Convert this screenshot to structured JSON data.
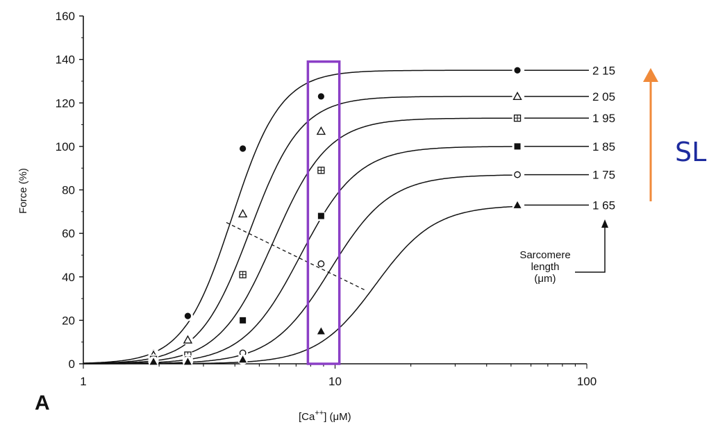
{
  "chart_data": {
    "type": "line",
    "panel_label": "A",
    "title": "",
    "xlabel_main": "[Ca",
    "xlabel_sup": "++",
    "xlabel_tail": "]  (μM)",
    "ylabel": "Force (%)",
    "x_scale": "log",
    "xlim": [
      1,
      100
    ],
    "ylim": [
      0,
      160
    ],
    "x_ticks": [
      1,
      10,
      100
    ],
    "x_tick_labels": [
      "1",
      "10",
      "100"
    ],
    "y_ticks": [
      0,
      20,
      40,
      60,
      80,
      100,
      120,
      140,
      160
    ],
    "y_tick_labels": [
      "0",
      "20",
      "40",
      "60",
      "80",
      "100",
      "120",
      "140",
      "160"
    ],
    "grid": false,
    "legend_title": "Sarcomere length (μm)",
    "legend_title_lines": [
      "Sarcomere",
      "length",
      "(μm)"
    ],
    "series": [
      {
        "name": "2 15",
        "marker": "filled-circle",
        "fmax": 135,
        "ec50": 3.9,
        "hill": 4.5,
        "points": [
          {
            "x": 1.9,
            "y": 5
          },
          {
            "x": 2.6,
            "y": 22
          },
          {
            "x": 4.3,
            "y": 99
          },
          {
            "x": 8.8,
            "y": 123
          },
          {
            "x": 53,
            "y": 135
          }
        ]
      },
      {
        "name": "2 05",
        "marker": "open-triangle",
        "fmax": 123,
        "ec50": 4.6,
        "hill": 4.3,
        "points": [
          {
            "x": 1.9,
            "y": 4
          },
          {
            "x": 2.6,
            "y": 11
          },
          {
            "x": 4.3,
            "y": 69
          },
          {
            "x": 8.8,
            "y": 107
          },
          {
            "x": 53,
            "y": 123
          }
        ]
      },
      {
        "name": "1 95",
        "marker": "boxed-square",
        "fmax": 113,
        "ec50": 5.7,
        "hill": 4.0,
        "points": [
          {
            "x": 1.9,
            "y": 2
          },
          {
            "x": 2.6,
            "y": 4
          },
          {
            "x": 4.3,
            "y": 41
          },
          {
            "x": 8.8,
            "y": 89
          },
          {
            "x": 53,
            "y": 113
          }
        ]
      },
      {
        "name": "1 85",
        "marker": "filled-square",
        "fmax": 100,
        "ec50": 7.3,
        "hill": 3.8,
        "points": [
          {
            "x": 1.9,
            "y": 1
          },
          {
            "x": 2.6,
            "y": 2
          },
          {
            "x": 4.3,
            "y": 20
          },
          {
            "x": 8.8,
            "y": 68
          },
          {
            "x": 53,
            "y": 100
          }
        ]
      },
      {
        "name": "1 75",
        "marker": "open-circle",
        "fmax": 87,
        "ec50": 9.6,
        "hill": 3.7,
        "points": [
          {
            "x": 1.9,
            "y": 1
          },
          {
            "x": 2.6,
            "y": 1
          },
          {
            "x": 4.3,
            "y": 5
          },
          {
            "x": 8.8,
            "y": 46
          },
          {
            "x": 53,
            "y": 87
          }
        ]
      },
      {
        "name": "1 65",
        "marker": "filled-triangle",
        "fmax": 73,
        "ec50": 14.5,
        "hill": 3.7,
        "points": [
          {
            "x": 1.9,
            "y": 1
          },
          {
            "x": 2.6,
            "y": 1
          },
          {
            "x": 4.3,
            "y": 2
          },
          {
            "x": 8.8,
            "y": 15
          },
          {
            "x": 53,
            "y": 73
          }
        ]
      }
    ],
    "ec50_line": {
      "x": [
        3.7,
        13.1
      ],
      "y": [
        65,
        34
      ]
    },
    "highlight_box": {
      "x": [
        7.8,
        10.4
      ],
      "y": [
        0,
        139
      ],
      "color": "#8b3fc6"
    },
    "sl_annotation": {
      "label": "SL",
      "color": "#1d2b9e",
      "arrow_color": "#f08a3a"
    }
  }
}
